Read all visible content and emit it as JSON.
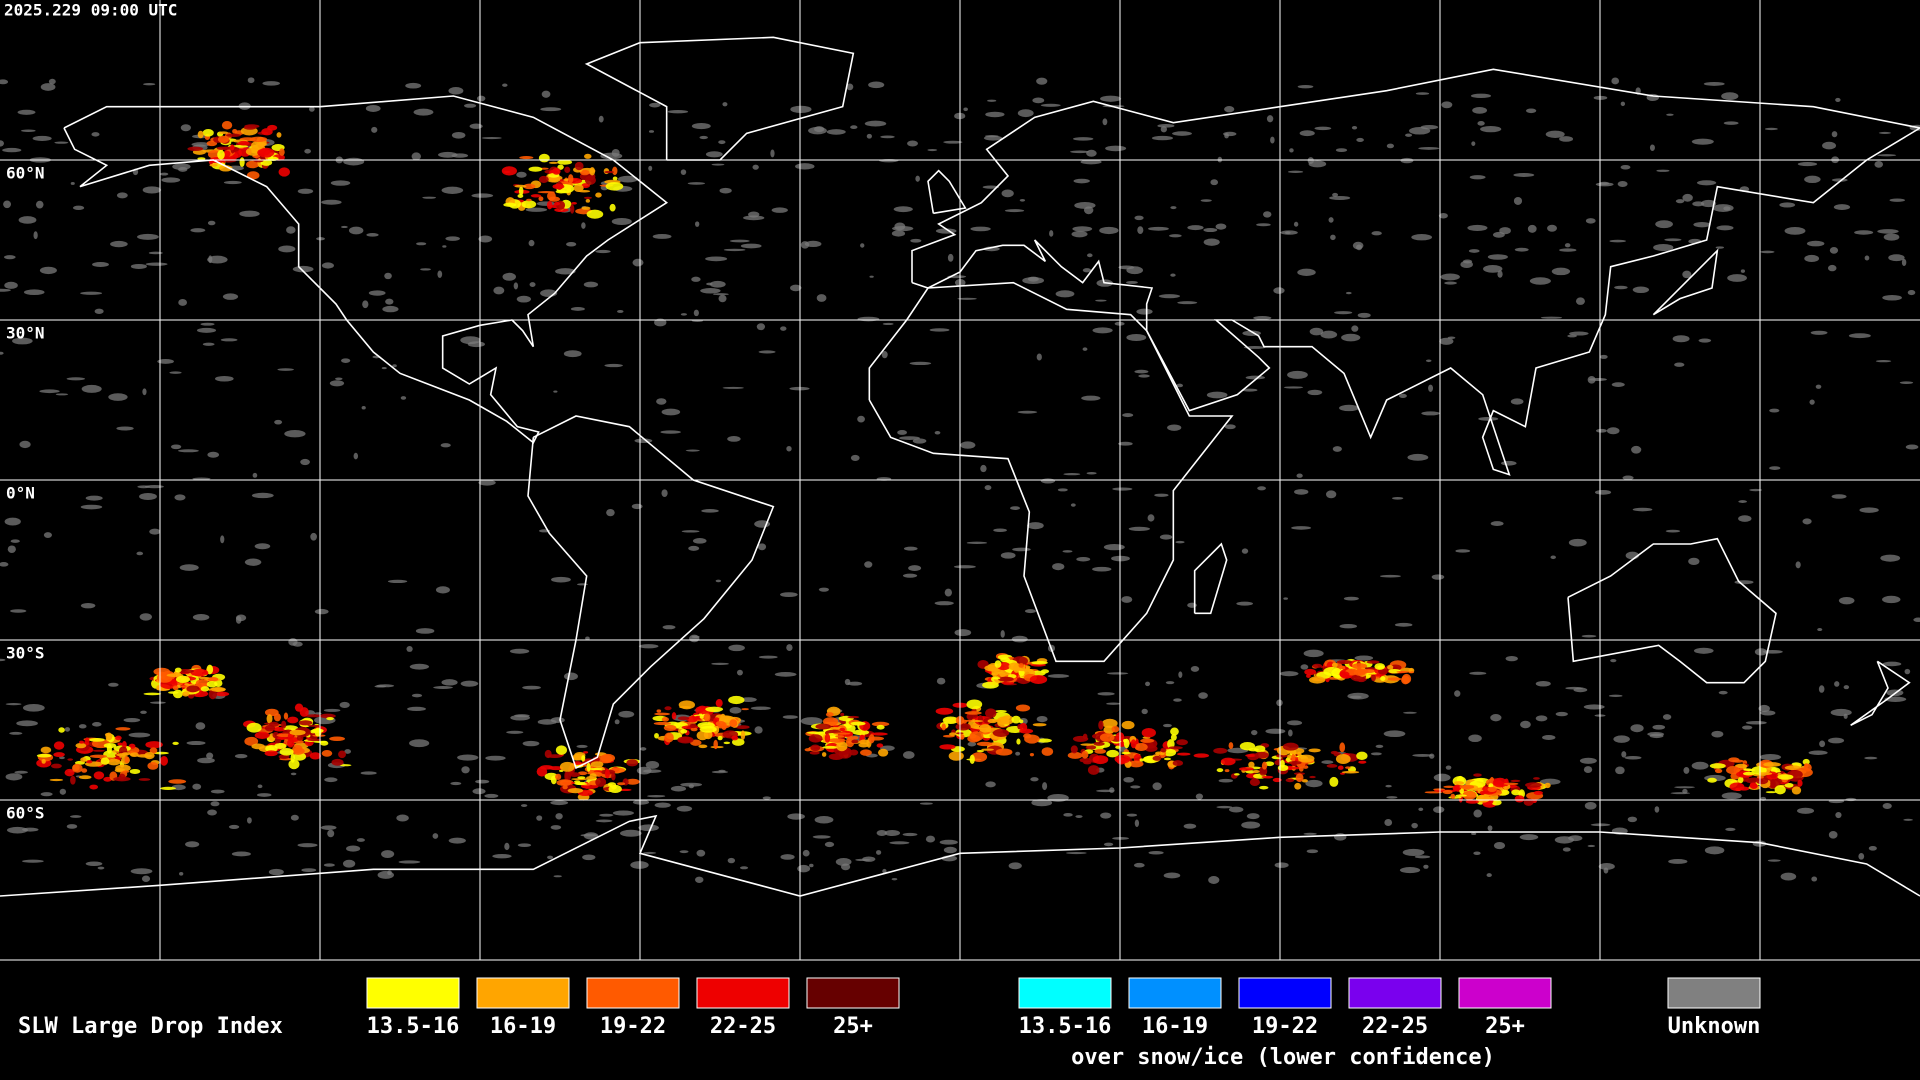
{
  "header": {
    "timestamp": "2025.229 09:00 UTC"
  },
  "map": {
    "latitude_labels": [
      "60°N",
      "30°N",
      "0°N",
      "30°S",
      "60°S"
    ]
  },
  "legend": {
    "title": "SLW Large Drop Index",
    "items": [
      {
        "label": "13.5-16",
        "color": "#ffff00"
      },
      {
        "label": "16-19",
        "color": "#ffa500"
      },
      {
        "label": "19-22",
        "color": "#ff5a00"
      },
      {
        "label": "22-25",
        "color": "#ee0000"
      },
      {
        "label": "25+",
        "color": "#660000"
      }
    ],
    "snow_ice_items": [
      {
        "label": "13.5-16",
        "color": "#00ffff"
      },
      {
        "label": "16-19",
        "color": "#0090ff"
      },
      {
        "label": "19-22",
        "color": "#0000ff"
      },
      {
        "label": "22-25",
        "color": "#7a00ee"
      },
      {
        "label": "25+",
        "color": "#cc00cc"
      }
    ],
    "snow_ice_note": "over snow/ice (lower confidence)",
    "unknown": {
      "label": "Unknown",
      "color": "#808080"
    }
  }
}
